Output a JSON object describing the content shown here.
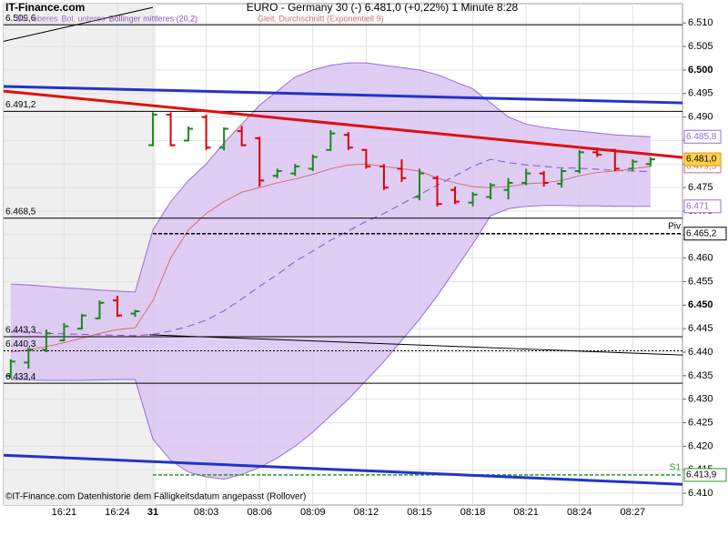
{
  "chart_data": {
    "type": "ohlc",
    "site": "IT-Finance.com",
    "title": "EURO - Germany 30 (-)   6.481,0 (+0,22%)   1 Minute  8:28",
    "source": "©IT-Finance.com Datenhistorie dem Fälligkeitsdatum angepasst (Rollover)",
    "categories": [
      null,
      null,
      null,
      "16:21",
      null,
      null,
      "16:24",
      null,
      "31",
      null,
      null,
      "08:03",
      null,
      null,
      "08:06",
      null,
      null,
      "08:09",
      null,
      null,
      "08:12",
      null,
      null,
      "08:15",
      null,
      null,
      "08:18",
      null,
      null,
      "08:21",
      null,
      null,
      "08:24",
      null,
      null,
      "08:27",
      null
    ],
    "xlim": [
      -0.4,
      37.8
    ],
    "ylim": [
      6.4075,
      6.5141
    ],
    "yticks": [
      {
        "value": 6.41,
        "label": "6.410"
      },
      6.415,
      {
        "value": 6.42,
        "label": "6.420"
      },
      6.425,
      {
        "value": 6.43,
        "label": "6.430"
      },
      6.435,
      {
        "value": 6.44,
        "label": "6.440"
      },
      6.445,
      {
        "value": 6.45,
        "label": "6.450"
      },
      6.455,
      {
        "value": 6.46,
        "label": "6.460"
      },
      6.465,
      {
        "value": 6.47,
        "label": "6.470"
      },
      6.475,
      {
        "value": 6.48,
        "label": "6.480"
      },
      6.485,
      {
        "value": 6.49,
        "label": "6.490"
      },
      6.495,
      {
        "value": 6.5,
        "label": "6.500"
      },
      6.505,
      {
        "value": 6.51,
        "label": "6.510"
      }
    ],
    "grid": true,
    "up_color": "#1a8a1a",
    "down_color": "#e00000",
    "open": [
      6.435,
      6.4378,
      6.4405,
      6.4425,
      6.445,
      6.4472,
      6.451,
      6.4482,
      6.484,
      6.4905,
      6.485,
      6.49,
      6.4835,
      6.487,
      6.4855,
      6.4775,
      6.478,
      6.479,
      6.483,
      6.4862,
      6.483,
      6.4795,
      6.479,
      6.473,
      6.477,
      6.4745,
      6.4718,
      6.473,
      6.4745,
      6.476,
      6.478,
      6.4758,
      6.4785,
      6.4825,
      6.483,
      6.479,
      6.48
    ],
    "high": [
      6.4385,
      6.441,
      6.4448,
      6.4462,
      6.4481,
      6.451,
      6.452,
      6.449,
      6.491,
      6.491,
      6.488,
      6.4905,
      6.4878,
      6.4881,
      6.4858,
      6.479,
      6.48,
      6.482,
      6.4872,
      6.4868,
      6.4832,
      6.48,
      6.481,
      6.479,
      6.4775,
      6.4752,
      6.474,
      6.476,
      6.477,
      6.479,
      6.4785,
      6.479,
      6.483,
      6.4835,
      6.4832,
      6.481,
      6.4815
    ],
    "low": [
      6.4345,
      6.4365,
      6.44,
      6.4423,
      6.4448,
      6.447,
      6.4475,
      6.4475,
      6.4838,
      6.4838,
      6.4848,
      6.483,
      6.4829,
      6.4838,
      6.4752,
      6.477,
      6.4775,
      6.4785,
      6.4828,
      6.483,
      6.479,
      6.4745,
      6.4762,
      6.4723,
      6.471,
      6.4715,
      6.471,
      6.4725,
      6.4725,
      6.4755,
      6.4752,
      6.475,
      6.478,
      6.4815,
      6.4785,
      6.4785,
      6.4795
    ],
    "close": [
      6.438,
      6.4405,
      6.444,
      6.4455,
      6.4478,
      6.4505,
      6.4478,
      6.4487,
      6.4905,
      6.484,
      6.4875,
      6.4835,
      6.4875,
      6.484,
      6.4765,
      6.4785,
      6.4795,
      6.4815,
      6.4865,
      6.4835,
      6.4795,
      6.475,
      6.477,
      6.478,
      6.4715,
      6.472,
      6.4735,
      6.4755,
      6.476,
      6.478,
      6.476,
      6.4785,
      6.4825,
      6.482,
      6.479,
      6.4805,
      6.481
    ],
    "last_close_label": "6.481,0",
    "band_color": "#d9c4f2",
    "series": [
      {
        "name": "Bol. oberes",
        "color": "#9a6ccf",
        "style": "solid",
        "values": [
          6.4545,
          6.4543,
          6.454,
          6.4537,
          6.4535,
          6.4532,
          6.453,
          6.4528,
          6.466,
          6.472,
          6.4765,
          6.48,
          6.4845,
          6.4885,
          6.4925,
          6.4955,
          6.4985,
          6.5,
          6.501,
          6.5015,
          6.5015,
          6.501,
          6.5005,
          6.5,
          6.499,
          6.4975,
          6.496,
          6.493,
          6.49,
          6.4885,
          6.4878,
          6.4873,
          6.487,
          6.4866,
          6.4862,
          6.486,
          6.4858
        ],
        "end_label": "6.485,8"
      },
      {
        "name": "Bol. unteres",
        "color": "#9a6ccf",
        "style": "solid",
        "values": [
          6.4342,
          6.4341,
          6.434,
          6.434,
          6.434,
          6.4341,
          6.4342,
          6.4342,
          6.4215,
          6.417,
          6.4145,
          6.4135,
          6.413,
          6.414,
          6.4155,
          6.4175,
          6.42,
          6.423,
          6.4265,
          6.43,
          6.434,
          6.438,
          6.4425,
          6.447,
          6.452,
          6.4575,
          6.463,
          6.469,
          6.4705,
          6.471,
          6.4712,
          6.4712,
          6.4711,
          6.4711,
          6.471,
          6.471,
          6.471
        ],
        "end_label": "6.471"
      },
      {
        "name": "Bollinger mittleres (20,2)",
        "color": "#8a4fc4",
        "style": "dashed",
        "values": [
          6.4443,
          6.4442,
          6.444,
          6.4439,
          6.4438,
          6.4437,
          6.4436,
          6.4435,
          6.4438,
          6.4445,
          6.4455,
          6.4468,
          6.4488,
          6.4513,
          6.454,
          6.4565,
          6.4593,
          6.4615,
          6.4638,
          6.4658,
          6.4678,
          6.4695,
          6.4715,
          6.4735,
          6.4755,
          6.4775,
          6.4795,
          6.481,
          6.4803,
          6.4798,
          6.4795,
          6.4792,
          6.4791,
          6.4789,
          6.4786,
          6.4785,
          6.4784
        ]
      },
      {
        "name": "Gleit. Durchschnitt (Exponentiell 9)",
        "color": "#d07070",
        "style": "solid",
        "values": [
          6.44,
          6.4405,
          6.4412,
          6.442,
          6.443,
          6.444,
          6.4448,
          6.4452,
          6.451,
          6.46,
          6.466,
          6.4695,
          6.472,
          6.474,
          6.475,
          6.476,
          6.4768,
          6.4778,
          6.479,
          6.4798,
          6.48,
          6.4795,
          6.479,
          6.4785,
          6.477,
          6.476,
          6.4752,
          6.475,
          6.4752,
          6.4758,
          6.476,
          6.4765,
          6.4775,
          6.4782,
          6.4785,
          6.479,
          6.4795
        ],
        "end_label": "6.479,5"
      }
    ],
    "trendlines": [
      {
        "x": [
          -0.4,
          37.8
        ],
        "values": [
          6.4965,
          6.493
        ],
        "color": "#2233cc",
        "width": 3
      },
      {
        "x": [
          -0.4,
          37.8
        ],
        "values": [
          6.4181,
          6.4119
        ],
        "color": "#2233cc",
        "width": 3
      },
      {
        "x": [
          -0.4,
          37.8
        ],
        "values": [
          6.4955,
          6.4814
        ],
        "color": "#e01010",
        "width": 3
      },
      {
        "x": [
          -0.4,
          8.0
        ],
        "values": [
          6.5061,
          6.5133
        ],
        "color": "#000000",
        "width": 1
      },
      {
        "x": [
          7.8,
          37.8
        ],
        "values": [
          6.4437,
          6.4394
        ],
        "color": "#000000",
        "width": 1
      }
    ],
    "levels": [
      {
        "value": 6.5096,
        "label": "6.509,6",
        "side": "left",
        "color": "#000000",
        "style": "solid"
      },
      {
        "value": 6.4912,
        "label": "6.491,2",
        "side": "left",
        "color": "#000000",
        "style": "solid"
      },
      {
        "value": 6.4685,
        "label": "6.468,5",
        "side": "left",
        "color": "#000000",
        "style": "solid"
      },
      {
        "value": 6.4433,
        "label": "6.443,3",
        "side": "left",
        "color": "#000000",
        "style": "solid"
      },
      {
        "value": 6.4403,
        "label": "6.440,3",
        "side": "left",
        "color": "#000000",
        "style": "dotted"
      },
      {
        "value": 6.4334,
        "label": "6.433,4",
        "side": "left",
        "color": "#000000",
        "style": "solid"
      },
      {
        "value": 6.4652,
        "label": "6.465,2",
        "name": "Piv",
        "side": "right",
        "color": "#000000",
        "style": "dashed"
      },
      {
        "value": 6.4139,
        "label": "6.413,9",
        "name": "S1",
        "side": "right",
        "color": "#2a9a2a",
        "style": "dashed"
      }
    ]
  }
}
